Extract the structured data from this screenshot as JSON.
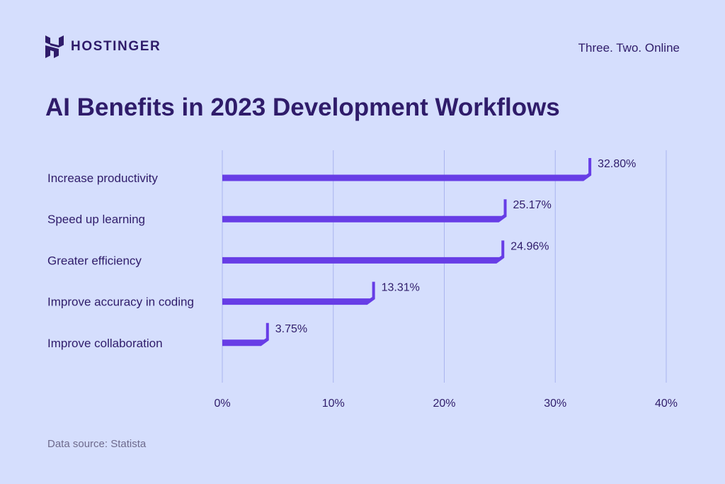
{
  "brand": {
    "name": "HOSTINGER",
    "tagline": "Three. Two. Online"
  },
  "colors": {
    "background": "#d5defd",
    "bar": "#673de6",
    "text": "#2f1c6a",
    "grid": "#a9b4ef"
  },
  "chart_data": {
    "type": "bar",
    "orientation": "horizontal",
    "title": "AI Benefits in 2023 Development Workflows",
    "categories": [
      "Increase productivity",
      "Speed up learning",
      "Greater efficiency",
      "Improve accuracy in coding",
      "Improve collaboration"
    ],
    "values": [
      32.8,
      25.17,
      24.96,
      13.31,
      3.75
    ],
    "value_labels": [
      "32.80%",
      "25.17%",
      "24.96%",
      "13.31%",
      "3.75%"
    ],
    "x_ticks": [
      "0%",
      "10%",
      "20%",
      "30%",
      "40%"
    ],
    "xlim": [
      0,
      40
    ],
    "grid": true,
    "legend": "none"
  },
  "footer": {
    "source": "Data source: Statista"
  }
}
